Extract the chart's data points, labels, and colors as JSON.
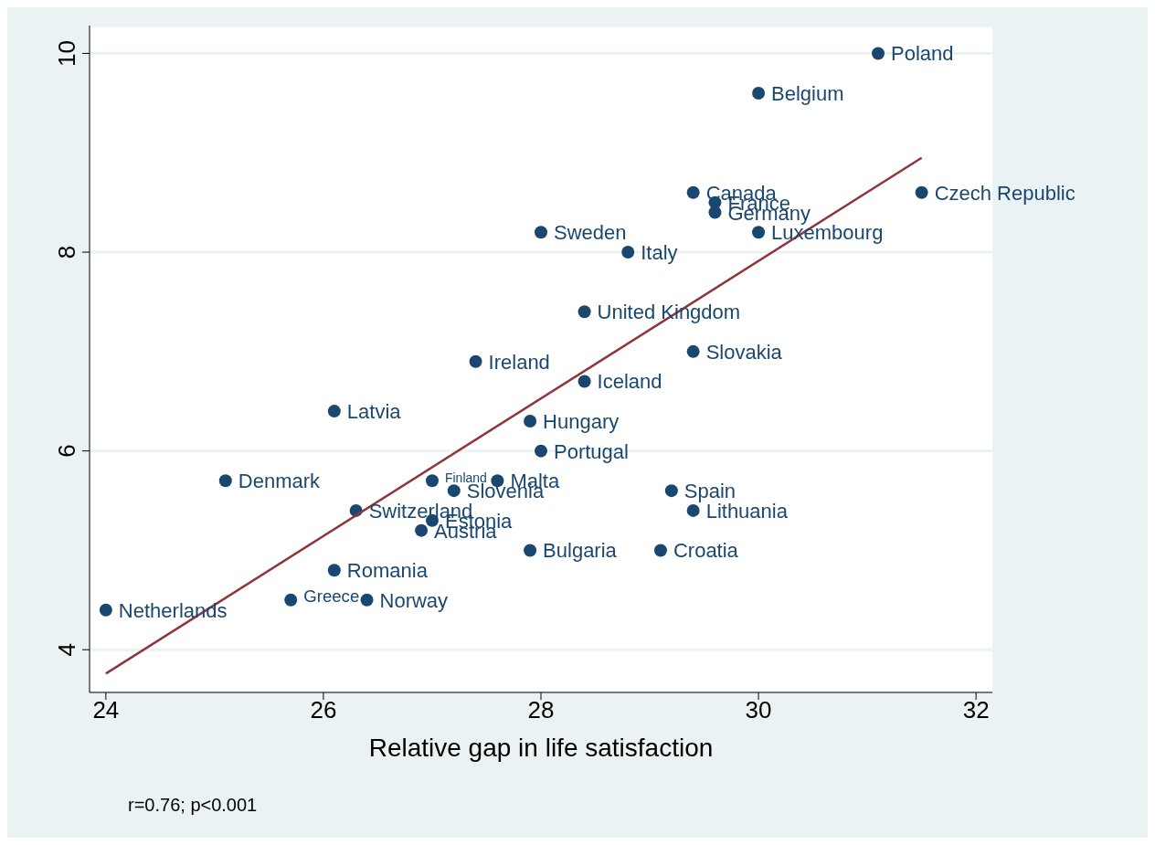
{
  "chart_data": {
    "type": "scatter",
    "xlabel": "Relative gap in life satisfaction",
    "xlim": [
      23.85,
      32.15
    ],
    "xticks": [
      24,
      26,
      28,
      30,
      32
    ],
    "ylim": [
      3.57,
      10.28
    ],
    "yticks": [
      4,
      6,
      8,
      10
    ],
    "grid": "y",
    "marker": "circle",
    "series": [
      {
        "type": "scatter",
        "color": "#1a476f",
        "x": [
          31.1,
          30.0,
          29.4,
          29.6,
          29.6,
          31.5,
          28.0,
          30.0,
          28.8,
          28.4,
          29.4,
          27.4,
          28.4,
          26.1,
          27.9,
          28.0,
          25.1,
          27.0,
          27.6,
          27.2,
          29.2,
          26.3,
          29.4,
          27.0,
          26.9,
          27.9,
          29.1,
          26.1,
          25.7,
          26.4,
          24.0
        ],
        "values": [
          10.0,
          9.6,
          8.6,
          8.5,
          8.4,
          8.6,
          8.2,
          8.2,
          8.0,
          7.4,
          7.0,
          6.9,
          6.7,
          6.4,
          6.3,
          6.0,
          5.7,
          5.7,
          5.7,
          5.6,
          5.6,
          5.4,
          5.4,
          5.3,
          5.2,
          5.0,
          5.0,
          4.8,
          4.5,
          4.5,
          4.4
        ]
      },
      {
        "type": "line",
        "color": "#90353b",
        "marker": "none",
        "x": [
          24.0,
          31.5
        ],
        "values": [
          3.76,
          8.95
        ]
      }
    ],
    "annotations": [
      {
        "text": "Poland",
        "x": 31.1,
        "y": 10.0
      },
      {
        "text": "Belgium",
        "x": 30.0,
        "y": 9.6
      },
      {
        "text": "Canada",
        "x": 29.4,
        "y": 8.6
      },
      {
        "text": "France",
        "x": 29.6,
        "y": 8.5
      },
      {
        "text": "Germany",
        "x": 29.6,
        "y": 8.4
      },
      {
        "text": "Czech Republic",
        "x": 31.5,
        "y": 8.6
      },
      {
        "text": "Sweden",
        "x": 28.0,
        "y": 8.2
      },
      {
        "text": "Luxembourg",
        "x": 30.0,
        "y": 8.2
      },
      {
        "text": "Italy",
        "x": 28.8,
        "y": 8.0
      },
      {
        "text": "United Kingdom",
        "x": 28.4,
        "y": 7.4
      },
      {
        "text": "Slovakia",
        "x": 29.4,
        "y": 7.0
      },
      {
        "text": "Ireland",
        "x": 27.4,
        "y": 6.9
      },
      {
        "text": "Iceland",
        "x": 28.4,
        "y": 6.7
      },
      {
        "text": "Latvia",
        "x": 26.1,
        "y": 6.4
      },
      {
        "text": "Hungary",
        "x": 27.9,
        "y": 6.3
      },
      {
        "text": "Portugal",
        "x": 28.0,
        "y": 6.0
      },
      {
        "text": "Denmark",
        "x": 25.1,
        "y": 5.7
      },
      {
        "text": "Finland",
        "x": 27.0,
        "y": 5.7
      },
      {
        "text": "Malta",
        "x": 27.6,
        "y": 5.7
      },
      {
        "text": "Slovenia",
        "x": 27.2,
        "y": 5.6
      },
      {
        "text": "Spain",
        "x": 29.2,
        "y": 5.6
      },
      {
        "text": "Switzerland",
        "x": 26.3,
        "y": 5.4
      },
      {
        "text": "Lithuania",
        "x": 29.4,
        "y": 5.4
      },
      {
        "text": "Estonia",
        "x": 27.0,
        "y": 5.3
      },
      {
        "text": "Austria",
        "x": 26.9,
        "y": 5.2
      },
      {
        "text": "Bulgaria",
        "x": 27.9,
        "y": 5.0
      },
      {
        "text": "Croatia",
        "x": 29.1,
        "y": 5.0
      },
      {
        "text": "Romania",
        "x": 26.1,
        "y": 4.8
      },
      {
        "text": "Greece",
        "x": 25.7,
        "y": 4.5
      },
      {
        "text": "Norway",
        "x": 26.4,
        "y": 4.5
      },
      {
        "text": "Netherlands",
        "x": 24.0,
        "y": 4.4
      },
      "r=0.76; p<0.001"
    ]
  }
}
